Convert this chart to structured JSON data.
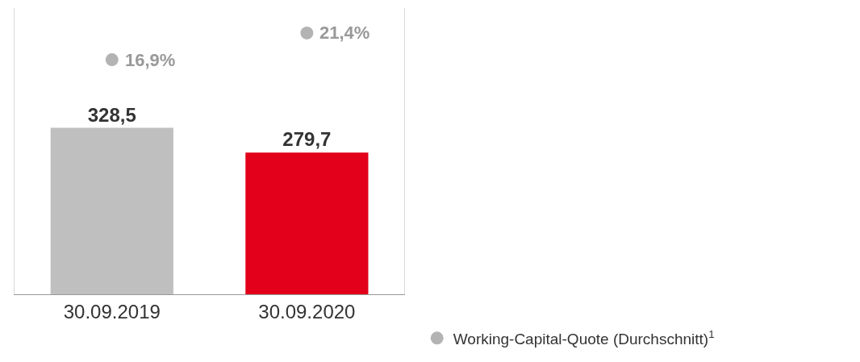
{
  "chart_data": {
    "type": "bar",
    "categories": [
      "30.09.2019",
      "30.09.2020"
    ],
    "series": [
      {
        "colors": [
          "#bfbfbf",
          "#e2001a"
        ],
        "values": [
          328.5,
          279.7
        ],
        "value_labels": [
          "328,5",
          "279,7"
        ]
      },
      {
        "type": "scatter",
        "axis": "y2",
        "name": "Working-Capital-Quote (Durchschnitt)$^{1}$",
        "color": "#b3b3b3",
        "values": [
          16.9,
          21.4
        ],
        "value_labels": [
          "16,9%",
          "21,4%"
        ]
      }
    ],
    "ylim": [
      0,
      565
    ],
    "y2lim": [
      -22.6,
      25.6
    ],
    "tick_labels": "x",
    "marker": "circle",
    "legend": "bottom right"
  }
}
